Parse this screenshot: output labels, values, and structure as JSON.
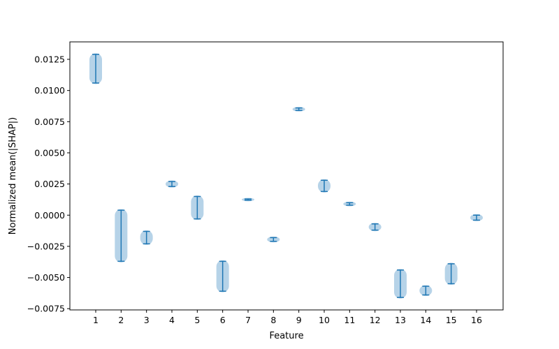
{
  "chart_data": {
    "type": "violin",
    "title": "",
    "xlabel": "Feature",
    "ylabel": "Normalized mean(|SHAP|)",
    "ylim": [
      -0.0076,
      0.0139
    ],
    "y_ticks": [
      -0.0075,
      -0.005,
      -0.0025,
      0.0,
      0.0025,
      0.005,
      0.0075,
      0.01,
      0.0125
    ],
    "y_tick_labels": [
      "−0.0075",
      "−0.0050",
      "−0.0025",
      "0.0000",
      "0.0025",
      "0.0050",
      "0.0075",
      "0.0100",
      "0.0125"
    ],
    "categories": [
      "1",
      "2",
      "3",
      "4",
      "5",
      "6",
      "7",
      "8",
      "9",
      "10",
      "11",
      "12",
      "13",
      "14",
      "15",
      "16"
    ],
    "min": [
      0.0106,
      -0.0037,
      -0.0023,
      0.0023,
      -0.0003,
      -0.0061,
      0.0012,
      -0.0021,
      0.0084,
      0.0019,
      0.0008,
      -0.0012,
      -0.0066,
      -0.0064,
      -0.0055,
      -0.0004
    ],
    "max": [
      0.0129,
      0.0004,
      -0.0013,
      0.0027,
      0.0015,
      -0.0037,
      0.0013,
      -0.0018,
      0.0086,
      0.0028,
      0.001,
      -0.0007,
      -0.0044,
      -0.0057,
      -0.0039,
      0.0
    ],
    "grid": false,
    "face_color": "#b6d3e8",
    "line_color": "#1f77b4"
  }
}
